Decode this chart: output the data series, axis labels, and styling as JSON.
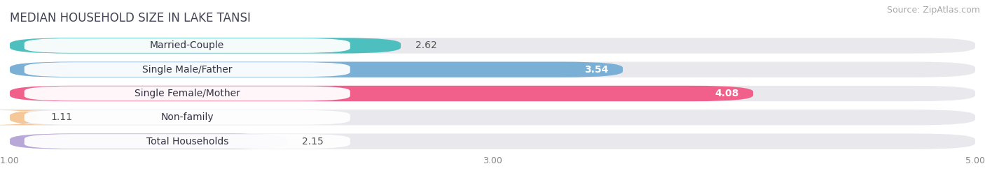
{
  "title": "MEDIAN HOUSEHOLD SIZE IN LAKE TANSI",
  "source": "Source: ZipAtlas.com",
  "categories": [
    "Married-Couple",
    "Single Male/Father",
    "Single Female/Mother",
    "Non-family",
    "Total Households"
  ],
  "values": [
    2.62,
    3.54,
    4.08,
    1.11,
    2.15
  ],
  "bar_colors": [
    "#4dbfbf",
    "#7aafd6",
    "#f0608a",
    "#f5c89a",
    "#b8a8d8"
  ],
  "value_in_bar": [
    false,
    true,
    true,
    false,
    false
  ],
  "xlim_min": 1.0,
  "xlim_max": 5.0,
  "xticks": [
    1.0,
    3.0,
    5.0
  ],
  "title_fontsize": 12,
  "source_fontsize": 9,
  "label_fontsize": 10,
  "value_fontsize": 10,
  "background_color": "#ffffff",
  "bar_bg_color": "#e8e8ed",
  "label_bg_color": "#ffffff",
  "bar_height": 0.65,
  "bar_gap": 0.35
}
